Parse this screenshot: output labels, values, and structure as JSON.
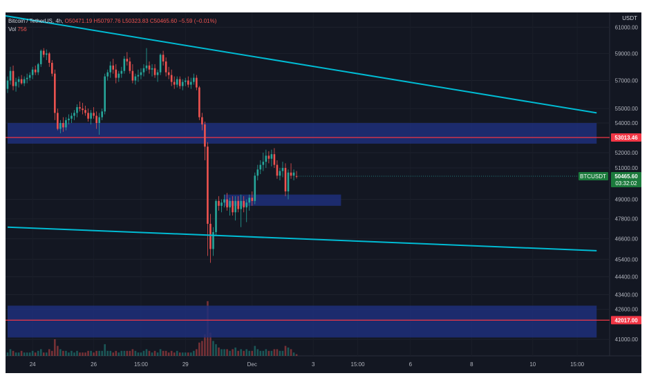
{
  "legend": {
    "title": "Bitcoin / TetherUS, 4h, ",
    "ohlc": "O50471.19  H50797.76  L50323.83  C50465.60  −5.59 (−0.01%)",
    "vol_label": "Vol",
    "vol_value": "756"
  },
  "axis_currency": "USDT",
  "symbol_badge": "BTCUSDT",
  "current_price": "50465.60",
  "countdown": "03:32:02",
  "level_labels": [
    "53013.46",
    "42017.00"
  ],
  "colors": {
    "background": "#131722",
    "up": "#26a69a",
    "down": "#ef5350",
    "trendline": "#00bcd4",
    "zone": "#1e2f7a",
    "level": "#f23645"
  },
  "chart_data": {
    "type": "candlestick",
    "title": "Bitcoin / TetherUS, 4h",
    "timeframe": "4h",
    "ylabel": "USDT",
    "y_axis_scale": "log",
    "ylim": [
      40400,
      61400
    ],
    "y_ticks": [
      "61000.00",
      "59000.00",
      "57000.00",
      "55000.00",
      "54000.00",
      "52000.00",
      "51000.00",
      "49000.00",
      "47800.00",
      "46600.00",
      "45400.00",
      "44400.00",
      "43400.00",
      "42600.00",
      "41000.00"
    ],
    "x_ticks": [
      "24",
      "26",
      "15:00",
      "29",
      "Dec",
      "3",
      "15:00",
      "6",
      "8",
      "10",
      "15:00"
    ],
    "last": {
      "open": 50471.19,
      "high": 50797.76,
      "low": 50323.83,
      "close": 50465.6,
      "change": -5.59,
      "change_pct": -0.01,
      "volume": 756
    },
    "candles": [
      [
        56400,
        57300,
        56100,
        57000,
        2
      ],
      [
        57000,
        58000,
        56700,
        57700,
        4
      ],
      [
        57700,
        58100,
        56300,
        56600,
        3
      ],
      [
        56600,
        57200,
        56200,
        56900,
        2
      ],
      [
        56900,
        57300,
        56500,
        57100,
        2
      ],
      [
        57100,
        57400,
        56700,
        56800,
        3
      ],
      [
        56800,
        57300,
        56600,
        57100,
        2
      ],
      [
        57100,
        57500,
        56800,
        57200,
        2
      ],
      [
        57200,
        57600,
        57000,
        57400,
        2
      ],
      [
        57400,
        58000,
        57100,
        57800,
        3
      ],
      [
        57800,
        58100,
        57400,
        57600,
        2
      ],
      [
        57600,
        58300,
        57400,
        58200,
        3
      ],
      [
        58200,
        59300,
        58000,
        59200,
        4
      ],
      [
        59200,
        59400,
        58700,
        58900,
        2
      ],
      [
        58900,
        59300,
        58500,
        59000,
        2
      ],
      [
        59000,
        59100,
        58000,
        58300,
        4
      ],
      [
        58300,
        58500,
        57300,
        57500,
        3
      ],
      [
        57500,
        57800,
        54200,
        54700,
        10
      ],
      [
        54700,
        55000,
        53500,
        53600,
        6
      ],
      [
        53600,
        54200,
        53300,
        54000,
        4
      ],
      [
        54000,
        54400,
        53400,
        53700,
        3
      ],
      [
        53700,
        54400,
        53500,
        54200,
        3
      ],
      [
        54200,
        54600,
        53900,
        54300,
        2
      ],
      [
        54300,
        54700,
        54000,
        54500,
        3
      ],
      [
        54500,
        54900,
        54200,
        54700,
        2
      ],
      [
        54700,
        55300,
        54400,
        55100,
        3
      ],
      [
        55100,
        55500,
        54800,
        55000,
        2
      ],
      [
        55000,
        55400,
        54600,
        54900,
        2
      ],
      [
        54900,
        55200,
        54500,
        54700,
        2
      ],
      [
        54700,
        55000,
        54100,
        54300,
        3
      ],
      [
        54300,
        54900,
        53900,
        54700,
        3
      ],
      [
        54700,
        55100,
        54300,
        54500,
        2
      ],
      [
        54500,
        54800,
        53600,
        54000,
        3
      ],
      [
        54000,
        54700,
        53200,
        54400,
        3
      ],
      [
        54400,
        55000,
        54200,
        54800,
        3
      ],
      [
        54800,
        57500,
        54600,
        57300,
        7
      ],
      [
        57300,
        57800,
        57000,
        57600,
        3
      ],
      [
        57600,
        58400,
        57200,
        58100,
        3
      ],
      [
        58100,
        58600,
        57500,
        57800,
        2
      ],
      [
        57800,
        58200,
        56800,
        57200,
        3
      ],
      [
        57200,
        57700,
        56900,
        57500,
        2
      ],
      [
        57500,
        58000,
        57200,
        57700,
        3
      ],
      [
        57700,
        58800,
        57500,
        58600,
        3
      ],
      [
        58600,
        59100,
        58100,
        58400,
        3
      ],
      [
        58400,
        58700,
        57500,
        57700,
        3
      ],
      [
        57700,
        58200,
        56800,
        57000,
        4
      ],
      [
        57000,
        57500,
        56700,
        57300,
        3
      ],
      [
        57300,
        57800,
        56900,
        57400,
        2
      ],
      [
        57400,
        57900,
        57100,
        57600,
        2
      ],
      [
        57600,
        58200,
        57300,
        57900,
        3
      ],
      [
        57900,
        59400,
        57700,
        58100,
        4
      ],
      [
        58100,
        58400,
        57500,
        57800,
        3
      ],
      [
        57800,
        58200,
        57300,
        57900,
        2
      ],
      [
        57900,
        58200,
        57200,
        57400,
        3
      ],
      [
        57400,
        57800,
        56900,
        57600,
        2
      ],
      [
        57600,
        59000,
        57400,
        58900,
        4
      ],
      [
        58900,
        59200,
        58100,
        58400,
        3
      ],
      [
        58400,
        58700,
        57300,
        57600,
        3
      ],
      [
        57600,
        58000,
        57100,
        57400,
        2
      ],
      [
        57400,
        57800,
        56600,
        56900,
        3
      ],
      [
        56900,
        57300,
        56400,
        56700,
        2
      ],
      [
        56700,
        57300,
        56500,
        57100,
        3
      ],
      [
        57100,
        57300,
        56400,
        56600,
        2
      ],
      [
        56600,
        57100,
        56300,
        56900,
        2
      ],
      [
        56900,
        57200,
        56600,
        57000,
        2
      ],
      [
        57000,
        57300,
        56500,
        56700,
        2
      ],
      [
        56700,
        57200,
        56400,
        56900,
        2
      ],
      [
        56900,
        57500,
        56700,
        57200,
        3
      ],
      [
        57200,
        57400,
        56300,
        56500,
        4
      ],
      [
        56500,
        56600,
        54200,
        54400,
        8
      ],
      [
        54400,
        54700,
        53500,
        53900,
        9
      ],
      [
        53900,
        54100,
        51500,
        52400,
        13
      ],
      [
        52400,
        52700,
        45600,
        47500,
        33
      ],
      [
        47500,
        48100,
        45200,
        46000,
        14
      ],
      [
        46000,
        47300,
        45600,
        47000,
        9
      ],
      [
        47000,
        49000,
        46800,
        48900,
        7
      ],
      [
        48900,
        49200,
        48300,
        48600,
        5
      ],
      [
        48600,
        49000,
        48200,
        48800,
        4
      ],
      [
        48800,
        49300,
        48500,
        49000,
        4
      ],
      [
        49000,
        49400,
        48300,
        48500,
        4
      ],
      [
        48500,
        49100,
        48000,
        48900,
        3
      ],
      [
        48900,
        49200,
        48000,
        48200,
        4
      ],
      [
        48200,
        49200,
        47700,
        48900,
        5
      ],
      [
        48900,
        49200,
        48200,
        48400,
        3
      ],
      [
        48400,
        49300,
        47300,
        48900,
        4
      ],
      [
        48900,
        49200,
        48200,
        48500,
        3
      ],
      [
        48500,
        49000,
        47600,
        48800,
        4
      ],
      [
        48800,
        49300,
        48300,
        49100,
        3
      ],
      [
        49100,
        49500,
        48600,
        48900,
        3
      ],
      [
        48900,
        50700,
        48700,
        50500,
        6
      ],
      [
        50500,
        51200,
        50200,
        50900,
        4
      ],
      [
        50900,
        51500,
        50600,
        51200,
        3
      ],
      [
        51200,
        52000,
        50800,
        51400,
        3
      ],
      [
        51400,
        52200,
        51000,
        51800,
        4
      ],
      [
        51800,
        52100,
        51300,
        51600,
        3
      ],
      [
        51600,
        52200,
        51100,
        51900,
        3
      ],
      [
        51900,
        52300,
        51000,
        51200,
        4
      ],
      [
        51200,
        51500,
        50300,
        50500,
        4
      ],
      [
        50500,
        51000,
        50200,
        50800,
        3
      ],
      [
        50800,
        51400,
        50400,
        51000,
        3
      ],
      [
        51000,
        51300,
        49200,
        49500,
        6
      ],
      [
        49500,
        50900,
        49000,
        50700,
        5
      ],
      [
        50700,
        51300,
        50300,
        50500,
        4
      ],
      [
        50500,
        50900,
        50200,
        50700,
        2
      ],
      [
        50471.19,
        50797.76,
        50323.83,
        50465.6,
        1
      ]
    ],
    "trendlines": [
      {
        "name": "descending-resistance",
        "from": {
          "bar": -1,
          "price": 61900
        },
        "to": {
          "bar": 212,
          "price": 54700
        }
      },
      {
        "name": "lower-channel",
        "from": {
          "bar": 0,
          "price": 47300
        },
        "to": {
          "bar": 212,
          "price": 45900
        }
      }
    ],
    "zones": [
      {
        "name": "supply-zone-upper",
        "from_bar": 0,
        "to_bar": 212,
        "top": 54000,
        "bottom": 52600
      },
      {
        "name": "zone-mid",
        "from_bar": 78,
        "to_bar": 120,
        "top": 49300,
        "bottom": 48600
      },
      {
        "name": "demand-zone-lower",
        "from_bar": 0,
        "to_bar": 212,
        "top": 42800,
        "bottom": 41100
      }
    ],
    "horizontal_levels": [
      53013.46,
      42017.0
    ],
    "grid": true
  }
}
